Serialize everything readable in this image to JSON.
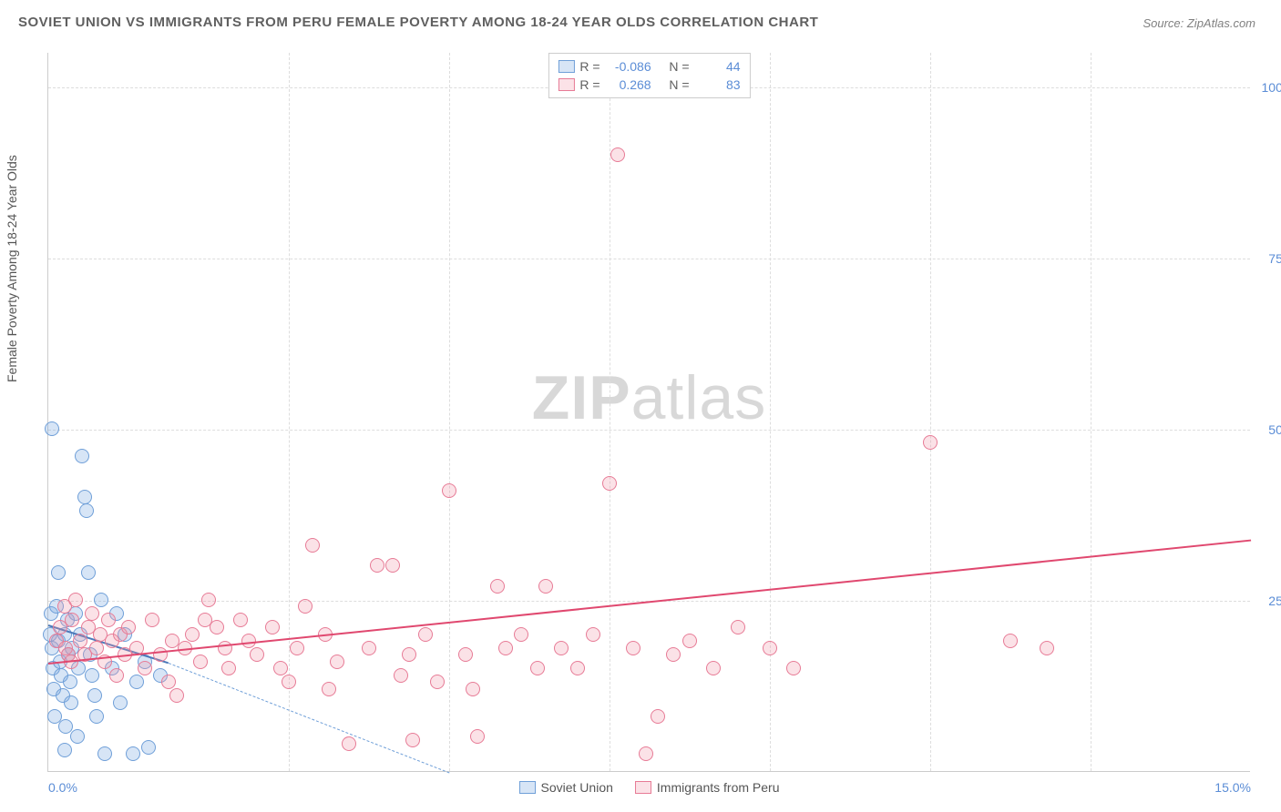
{
  "title": "SOVIET UNION VS IMMIGRANTS FROM PERU FEMALE POVERTY AMONG 18-24 YEAR OLDS CORRELATION CHART",
  "source": "Source: ZipAtlas.com",
  "y_axis_label": "Female Poverty Among 18-24 Year Olds",
  "watermark_a": "ZIP",
  "watermark_b": "atlas",
  "chart": {
    "type": "scatter",
    "xlim": [
      0,
      15
    ],
    "ylim": [
      0,
      105
    ],
    "x_ticks": [
      {
        "v": 0,
        "label": "0.0%"
      },
      {
        "v": 15,
        "label": "15.0%"
      }
    ],
    "y_ticks": [
      {
        "v": 25,
        "label": "25.0%"
      },
      {
        "v": 50,
        "label": "50.0%"
      },
      {
        "v": 75,
        "label": "75.0%"
      },
      {
        "v": 100,
        "label": "100.0%"
      }
    ],
    "x_grid": [
      3,
      5,
      7,
      9,
      11,
      13
    ],
    "background_color": "#ffffff",
    "grid_color": "#dddddd",
    "axis_color": "#cccccc",
    "tick_color": "#5b8dd6",
    "marker_radius": 8,
    "marker_stroke_width": 1.5,
    "series": [
      {
        "name": "Soviet Union",
        "fill": "rgba(122,168,224,0.30)",
        "stroke": "#6f9fd8",
        "trend_color": "#4b79b9",
        "R": "-0.086",
        "N": "44",
        "trend": {
          "x1": 0,
          "y1": 21.5,
          "x2": 1.5,
          "y2": 16
        },
        "trend_ext": {
          "x1": 1.5,
          "y1": 16,
          "x2": 5.0,
          "y2": 0
        },
        "points": [
          [
            0.02,
            20
          ],
          [
            0.03,
            23
          ],
          [
            0.04,
            50
          ],
          [
            0.05,
            18
          ],
          [
            0.06,
            15
          ],
          [
            0.07,
            12
          ],
          [
            0.08,
            8
          ],
          [
            0.1,
            24
          ],
          [
            0.12,
            29
          ],
          [
            0.13,
            19
          ],
          [
            0.15,
            16
          ],
          [
            0.16,
            14
          ],
          [
            0.18,
            11
          ],
          [
            0.2,
            20
          ],
          [
            0.21,
            3
          ],
          [
            0.22,
            6.5
          ],
          [
            0.24,
            22
          ],
          [
            0.25,
            17
          ],
          [
            0.27,
            13
          ],
          [
            0.28,
            10
          ],
          [
            0.3,
            18
          ],
          [
            0.34,
            23
          ],
          [
            0.36,
            5
          ],
          [
            0.38,
            15
          ],
          [
            0.4,
            20
          ],
          [
            0.42,
            46
          ],
          [
            0.45,
            40
          ],
          [
            0.48,
            38
          ],
          [
            0.5,
            29
          ],
          [
            0.52,
            17
          ],
          [
            0.55,
            14
          ],
          [
            0.58,
            11
          ],
          [
            0.6,
            8
          ],
          [
            0.66,
            25
          ],
          [
            0.7,
            2.5
          ],
          [
            0.8,
            15
          ],
          [
            0.85,
            23
          ],
          [
            0.9,
            10
          ],
          [
            0.95,
            20
          ],
          [
            1.06,
            2.5
          ],
          [
            1.1,
            13
          ],
          [
            1.2,
            16
          ],
          [
            1.25,
            3.5
          ],
          [
            1.4,
            14
          ]
        ]
      },
      {
        "name": "Immigrants from Peru",
        "fill": "rgba(240,150,170,0.28)",
        "stroke": "#e77b96",
        "trend_color": "#e0486f",
        "R": "0.268",
        "N": "83",
        "trend": {
          "x1": 0,
          "y1": 16,
          "x2": 15,
          "y2": 34
        },
        "points": [
          [
            0.1,
            19
          ],
          [
            0.15,
            21
          ],
          [
            0.2,
            24
          ],
          [
            0.22,
            18
          ],
          [
            0.25,
            17
          ],
          [
            0.28,
            16
          ],
          [
            0.3,
            22
          ],
          [
            0.34,
            25
          ],
          [
            0.4,
            19
          ],
          [
            0.45,
            17
          ],
          [
            0.5,
            21
          ],
          [
            0.55,
            23
          ],
          [
            0.6,
            18
          ],
          [
            0.65,
            20
          ],
          [
            0.7,
            16
          ],
          [
            0.75,
            22
          ],
          [
            0.8,
            19
          ],
          [
            0.85,
            14
          ],
          [
            0.9,
            20
          ],
          [
            0.95,
            17
          ],
          [
            1.0,
            21
          ],
          [
            1.1,
            18
          ],
          [
            1.2,
            15
          ],
          [
            1.3,
            22
          ],
          [
            1.4,
            17
          ],
          [
            1.5,
            13
          ],
          [
            1.55,
            19
          ],
          [
            1.6,
            11
          ],
          [
            1.7,
            18
          ],
          [
            1.8,
            20
          ],
          [
            1.9,
            16
          ],
          [
            1.95,
            22
          ],
          [
            2.0,
            25
          ],
          [
            2.1,
            21
          ],
          [
            2.2,
            18
          ],
          [
            2.25,
            15
          ],
          [
            2.4,
            22
          ],
          [
            2.5,
            19
          ],
          [
            2.6,
            17
          ],
          [
            2.8,
            21
          ],
          [
            2.9,
            15
          ],
          [
            3.0,
            13
          ],
          [
            3.1,
            18
          ],
          [
            3.2,
            24
          ],
          [
            3.3,
            33
          ],
          [
            3.45,
            20
          ],
          [
            3.5,
            12
          ],
          [
            3.6,
            16
          ],
          [
            3.75,
            4
          ],
          [
            4.0,
            18
          ],
          [
            4.1,
            30
          ],
          [
            4.3,
            30
          ],
          [
            4.4,
            14
          ],
          [
            4.5,
            17
          ],
          [
            4.55,
            4.5
          ],
          [
            4.7,
            20
          ],
          [
            4.85,
            13
          ],
          [
            5.0,
            41
          ],
          [
            5.2,
            17
          ],
          [
            5.3,
            12
          ],
          [
            5.35,
            5
          ],
          [
            5.6,
            27
          ],
          [
            5.7,
            18
          ],
          [
            5.9,
            20
          ],
          [
            6.1,
            15
          ],
          [
            6.2,
            27
          ],
          [
            6.4,
            18
          ],
          [
            6.6,
            15
          ],
          [
            6.8,
            20
          ],
          [
            7.0,
            42
          ],
          [
            7.1,
            90
          ],
          [
            7.3,
            18
          ],
          [
            7.45,
            2.5
          ],
          [
            7.6,
            8
          ],
          [
            7.8,
            17
          ],
          [
            8.0,
            19
          ],
          [
            8.3,
            15
          ],
          [
            8.6,
            21
          ],
          [
            9.0,
            18
          ],
          [
            9.3,
            15
          ],
          [
            11.0,
            48
          ],
          [
            12.0,
            19
          ],
          [
            12.45,
            18
          ]
        ]
      }
    ]
  },
  "legend_top": {
    "r_label": "R =",
    "n_label": "N ="
  }
}
